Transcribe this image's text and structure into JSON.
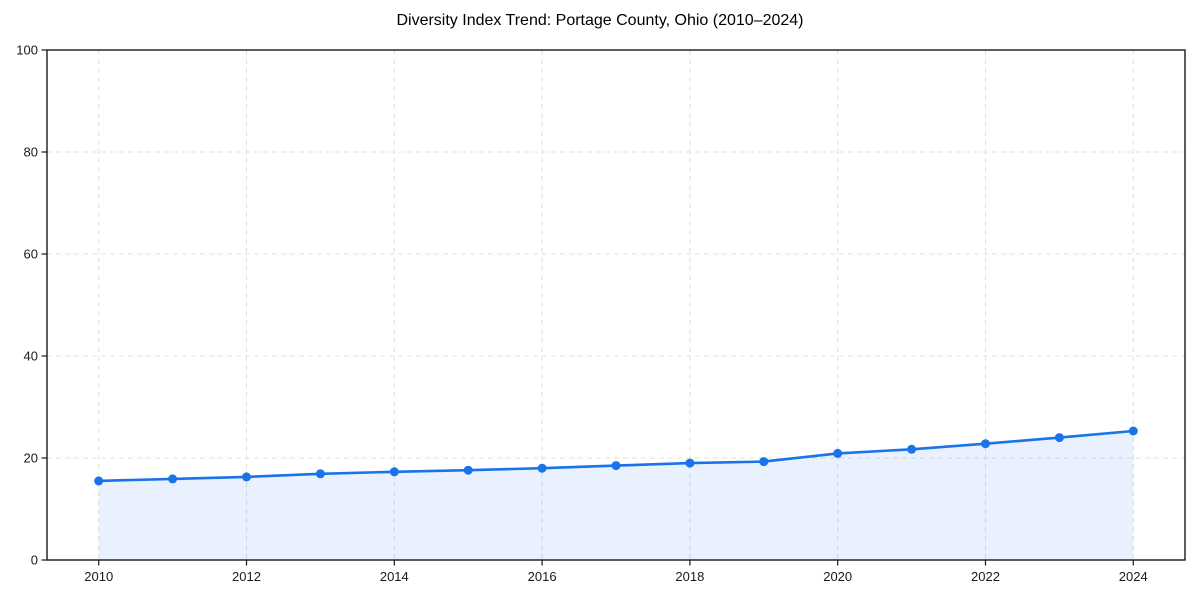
{
  "chart_data": {
    "type": "line",
    "title": "Diversity Index Trend: Portage County, Ohio (2010–2024)",
    "xlabel": "",
    "ylabel": "",
    "x": [
      2010,
      2011,
      2012,
      2013,
      2014,
      2015,
      2016,
      2017,
      2018,
      2019,
      2020,
      2021,
      2022,
      2023,
      2024
    ],
    "series": [
      {
        "name": "Diversity Index",
        "values": [
          15.5,
          15.9,
          16.3,
          16.9,
          17.3,
          17.6,
          18.0,
          18.5,
          19.0,
          19.3,
          20.9,
          21.7,
          22.8,
          24.0,
          25.3
        ]
      }
    ],
    "x_ticks": [
      2010,
      2012,
      2014,
      2016,
      2018,
      2020,
      2022,
      2024
    ],
    "x_tick_labels": [
      "2010",
      "2012",
      "2014",
      "2016",
      "2018",
      "2020",
      "2022",
      "2024"
    ],
    "y_ticks": [
      0,
      20,
      40,
      60,
      80,
      100
    ],
    "y_tick_labels": [
      "0",
      "20",
      "40",
      "60",
      "80",
      "100"
    ],
    "xlim": [
      2009.3,
      2024.7
    ],
    "ylim": [
      0,
      100
    ],
    "grid": "dashed, both axes at ticks",
    "legend": "none",
    "marker": "circle",
    "area_fill": true,
    "colors": {
      "line": "#1a73e8",
      "marker": "#1a73e8",
      "area": "rgba(26,115,232,0.10)",
      "grid": "#e0e0e0",
      "axis": "#1a1a1a",
      "tick_text": "#1a1a1a",
      "title_text": "#000000",
      "background": "#ffffff"
    }
  }
}
